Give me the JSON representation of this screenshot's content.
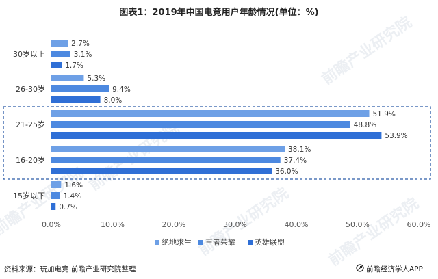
{
  "chart_data": {
    "type": "bar",
    "orientation": "horizontal",
    "title": "图表1：2019年中国电竞用户年龄情况(单位：%)",
    "categories": [
      "30岁以上",
      "26-30岁",
      "21-25岁",
      "16-20岁",
      "15岁以下"
    ],
    "series": [
      {
        "name": "绝地求生",
        "color": "#6ea0e6",
        "values": [
          2.7,
          5.3,
          51.9,
          38.1,
          1.6
        ],
        "labels": [
          "2.7%",
          "5.3%",
          "51.9%",
          "38.1%",
          "1.6%"
        ]
      },
      {
        "name": "王者荣耀",
        "color": "#4d89e0",
        "values": [
          3.1,
          9.4,
          48.8,
          37.4,
          1.4
        ],
        "labels": [
          "3.1%",
          "9.4%",
          "48.8%",
          "37.4%",
          "1.4%"
        ]
      },
      {
        "name": "英雄联盟",
        "color": "#2f6fd6",
        "values": [
          1.7,
          8.0,
          53.9,
          36.0,
          0.7
        ],
        "labels": [
          "1.7%",
          "8.0%",
          "53.9%",
          "36.0%",
          "0.7%"
        ]
      }
    ],
    "xlim": [
      0,
      60
    ],
    "x_ticks": [
      "0.0%",
      "10.0%",
      "20.0%",
      "30.0%",
      "40.0%",
      "50.0%",
      "60.0%"
    ],
    "grid": false,
    "legend_position": "bottom",
    "highlight_boxes": [
      "21-25岁",
      "16-20岁"
    ]
  },
  "footer": {
    "source": "资料来源：玩加电竞 前瞻产业研究院整理",
    "brand": "前瞻经济学人APP"
  },
  "watermark": "前瞻产业研究院"
}
